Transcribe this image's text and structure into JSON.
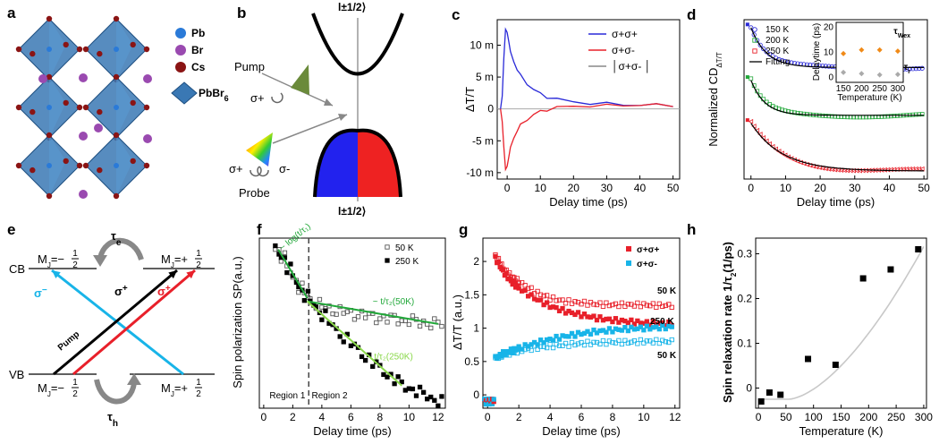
{
  "panel_labels": [
    "a",
    "b",
    "c",
    "d",
    "e",
    "f",
    "g",
    "h"
  ],
  "colors": {
    "red": "#e8202a",
    "blue": "#2a2ad8",
    "green": "#22a83a",
    "cyan": "#18b4e8",
    "orange": "#f08a18",
    "gray": "#9a9a9a",
    "crystal": "#3a78b4"
  },
  "panel_a": {
    "legend": [
      {
        "label": "Pb",
        "color": "#2a7ad8"
      },
      {
        "label": "Br",
        "color": "#9a4ab0"
      },
      {
        "label": "Cs",
        "color": "#8a1414"
      },
      {
        "label": "PbBr",
        "sub": "6",
        "color": "#3a78b4"
      }
    ]
  },
  "panel_b": {
    "top_state": "l±1/2⟩",
    "bottom_state": "l±1/2⟩",
    "pump": "Pump",
    "probe": "Probe",
    "sigma_plus_pump": "σ+",
    "sigma_plus_probe": "σ+",
    "sigma_minus_probe": "σ-"
  },
  "panel_e": {
    "cb": "CB",
    "vb": "VB",
    "mj_cb_left": "M",
    "mj_cb_left_val": "=−",
    "mj_cb_right": "M",
    "mj_cb_right_val": "=+",
    "mj_vb_left": "M",
    "mj_vb_left_val": "=−",
    "mj_vb_right": "M",
    "mj_vb_right_val": "=+",
    "frac_num": "1",
    "frac_den": "2",
    "tau_e": "τ",
    "tau_e_sub": "e",
    "tau_h": "τ",
    "tau_h_sub": "h",
    "pump": "Pump",
    "sigma_minus": "σ",
    "sigma_plus_black": "σ",
    "sigma_plus_red": "σ"
  },
  "chart_data": [
    {
      "panel": "c",
      "type": "line",
      "xlabel": "Delay time (ps)",
      "ylabel": "ΔT/T",
      "xlim": [
        -3,
        52
      ],
      "ylim": [
        -11,
        14
      ],
      "xticks": [
        0,
        10,
        20,
        30,
        40,
        50
      ],
      "yticks": [
        {
          "v": 10,
          "label": "10 m"
        },
        {
          "v": 5,
          "label": "5 m"
        },
        {
          "v": 0,
          "label": "0"
        },
        {
          "v": -5,
          "label": "-5 m"
        },
        {
          "v": -10,
          "label": "-10 m"
        }
      ],
      "legend": [
        "σ+σ+",
        "σ+σ-",
        "│σ+σ- │"
      ],
      "series": [
        {
          "name": "σ+σ+",
          "color": "#2a2ad8",
          "x": [
            -2,
            -1.5,
            -1,
            -0.5,
            0,
            0.5,
            1,
            2,
            3,
            4,
            6,
            8,
            10,
            12,
            15,
            20,
            25,
            30,
            35,
            40,
            45,
            50
          ],
          "y": [
            0,
            2,
            8,
            12.5,
            12,
            10.5,
            9,
            7.5,
            6.2,
            5.2,
            4,
            3,
            2.4,
            1.9,
            1.5,
            1.1,
            0.9,
            0.8,
            0.7,
            0.6,
            0.6,
            0.6
          ]
        },
        {
          "name": "σ+σ-",
          "color": "#e8202a",
          "x": [
            -2,
            -1.5,
            -1,
            -0.5,
            0,
            0.5,
            1,
            2,
            3,
            4,
            6,
            8,
            10,
            12,
            15,
            20,
            25,
            30,
            35,
            40,
            45,
            50
          ],
          "y": [
            0,
            -2,
            -6,
            -9.5,
            -9,
            -7.5,
            -6,
            -4.5,
            -3.4,
            -2.6,
            -1.6,
            -0.9,
            -0.4,
            -0.1,
            0.2,
            0.4,
            0.5,
            0.5,
            0.6,
            0.6,
            0.6,
            0.6
          ]
        }
      ]
    },
    {
      "panel": "d",
      "type": "scatter",
      "xlabel": "Delay time (ps)",
      "ylabel": "Normalized CD",
      "ylabel_sub": "ΔT/T",
      "xlim": [
        -2,
        51
      ],
      "xticks": [
        0,
        10,
        20,
        30,
        40,
        50
      ],
      "legend": [
        "150 K",
        "200 K",
        "250 K",
        "Fitting"
      ],
      "series": [
        {
          "name": "150 K",
          "color": "#2a2ad8",
          "offset": 0.7,
          "tau": 4.5,
          "amp": 0.25
        },
        {
          "name": "200 K",
          "color": "#22a83a",
          "offset": 0.4,
          "tau": 4.0,
          "amp": 0.22
        },
        {
          "name": "250 K",
          "color": "#e8202a",
          "offset": 0.05,
          "tau": 9.0,
          "amp": 0.3
        }
      ],
      "inset": {
        "xlabel": "Temperature (K)",
        "ylabel": "Delaytime (ps)",
        "xticks": [
          150,
          200,
          250,
          300
        ],
        "yticks": [
          0,
          10,
          20
        ],
        "ylim": [
          -2,
          22
        ],
        "xlim": [
          130,
          315
        ],
        "series": [
          {
            "name": "τ",
            "sub": "Wex",
            "color": "#f08a18",
            "x": [
              150,
              200,
              250,
              300
            ],
            "y": [
              9.5,
              11,
              11,
              10.5
            ]
          },
          {
            "name": "τ",
            "sub": "r",
            "color": "#aaaaaa",
            "x": [
              150,
              200,
              250,
              300
            ],
            "y": [
              2,
              1.5,
              1,
              1.2
            ]
          }
        ]
      }
    },
    {
      "panel": "f",
      "type": "scatter",
      "xlabel": "Delay time (ps)",
      "ylabel": "Spin polarization SP(a.u.)",
      "xlim": [
        -0.3,
        12.5
      ],
      "xticks": [
        0,
        2,
        4,
        6,
        8,
        10,
        12
      ],
      "legend": [
        "50 K",
        "250 K"
      ],
      "annotations": [
        "~ log(t/τ₁)",
        "~ t/τ₂(50K)",
        "t/τ₂(250K)",
        "Region 1",
        "Region 2"
      ],
      "divider_x": 3.1,
      "series": [
        {
          "name": "50 K",
          "color": "#555555",
          "filled": false,
          "x": [
            0.8,
            1.2,
            1.6,
            2,
            2.4,
            2.8,
            3.2,
            3.6,
            4,
            4.5,
            5,
            5.5,
            6,
            6.5,
            7,
            7.5,
            8,
            8.5,
            9,
            9.5,
            10,
            10.5,
            11,
            11.5,
            12
          ],
          "y": [
            0.98,
            0.93,
            0.86,
            0.8,
            0.74,
            0.7,
            0.66,
            0.64,
            0.62,
            0.61,
            0.6,
            0.59,
            0.58,
            0.58,
            0.57,
            0.56,
            0.56,
            0.55,
            0.55,
            0.54,
            0.54,
            0.53,
            0.53,
            0.52,
            0.52
          ]
        },
        {
          "name": "250 K",
          "color": "#000000",
          "filled": true,
          "x": [
            0.8,
            1.2,
            1.6,
            2,
            2.4,
            2.8,
            3.2,
            3.6,
            4,
            4.5,
            5,
            5.5,
            6,
            6.5,
            7,
            7.5,
            8,
            8.5,
            9,
            9.5,
            10,
            10.5,
            11,
            11.5,
            12
          ],
          "y": [
            0.98,
            0.93,
            0.86,
            0.8,
            0.74,
            0.69,
            0.65,
            0.61,
            0.57,
            0.52,
            0.47,
            0.43,
            0.39,
            0.35,
            0.31,
            0.27,
            0.24,
            0.2,
            0.17,
            0.14,
            0.12,
            0.1,
            0.08,
            0.06,
            0.04
          ]
        }
      ]
    },
    {
      "panel": "g",
      "type": "scatter",
      "xlabel": "Delay time (ps)",
      "ylabel": "ΔT/T (a.u.)",
      "xlim": [
        -0.3,
        12.3
      ],
      "ylim": [
        -0.2,
        2.35
      ],
      "xticks": [
        0,
        2,
        4,
        6,
        8,
        10,
        12
      ],
      "yticks": [
        {
          "v": 0,
          "label": "0"
        },
        {
          "v": 0.5,
          "label": "0.5"
        },
        {
          "v": 1,
          "label": "1"
        },
        {
          "v": 1.5,
          "label": "1.5"
        },
        {
          "v": 2,
          "label": "2"
        }
      ],
      "legend": [
        "σ+σ+",
        "σ+σ-"
      ],
      "labels": [
        "50 K",
        "250 K",
        "50 K"
      ],
      "series": [
        {
          "name": "σ+σ+ 50 K",
          "color": "#e8202a",
          "filled": false,
          "x": [
            0.5,
            1,
            1.5,
            2,
            3,
            4,
            5,
            6,
            7,
            8,
            9,
            10,
            11,
            12
          ],
          "y": [
            2.1,
            1.9,
            1.78,
            1.7,
            1.55,
            1.45,
            1.4,
            1.38,
            1.36,
            1.35,
            1.35,
            1.35,
            1.34,
            1.34
          ]
        },
        {
          "name": "σ+σ+ 250 K",
          "color": "#e8202a",
          "filled": true,
          "x": [
            0.5,
            1,
            1.5,
            2,
            3,
            4,
            5,
            6,
            7,
            8,
            9,
            10,
            11,
            12
          ],
          "y": [
            2.05,
            1.85,
            1.7,
            1.6,
            1.45,
            1.33,
            1.25,
            1.2,
            1.15,
            1.12,
            1.1,
            1.08,
            1.07,
            1.06
          ]
        },
        {
          "name": "σ+σ- 250 K",
          "color": "#18b4e8",
          "filled": true,
          "x": [
            0.5,
            1,
            1.5,
            2,
            3,
            4,
            5,
            6,
            7,
            8,
            9,
            10,
            11,
            12
          ],
          "y": [
            0.55,
            0.62,
            0.66,
            0.7,
            0.77,
            0.83,
            0.88,
            0.92,
            0.95,
            0.97,
            0.99,
            1.0,
            1.01,
            1.02
          ]
        },
        {
          "name": "σ+σ- 50 K",
          "color": "#18b4e8",
          "filled": false,
          "x": [
            0.5,
            1,
            1.5,
            2,
            3,
            4,
            5,
            6,
            7,
            8,
            9,
            10,
            11,
            12
          ],
          "y": [
            0.55,
            0.6,
            0.63,
            0.66,
            0.7,
            0.73,
            0.75,
            0.77,
            0.78,
            0.79,
            0.79,
            0.8,
            0.8,
            0.8
          ]
        }
      ]
    },
    {
      "panel": "h",
      "type": "scatter",
      "xlabel": "Temperature (K)",
      "ylabel": "Spin relaxation rate 1/τ",
      "ylabel_sub": "2",
      "ylabel_tail": "(1/ps)",
      "xlim": [
        -5,
        305
      ],
      "ylim": [
        -0.045,
        0.335
      ],
      "xticks": [
        0,
        50,
        100,
        150,
        200,
        250,
        300
      ],
      "yticks": [
        {
          "v": 0,
          "label": "0"
        },
        {
          "v": 0.1,
          "label": "0.1"
        },
        {
          "v": 0.2,
          "label": "0.2"
        },
        {
          "v": 0.3,
          "label": "0.3"
        }
      ],
      "series": [
        {
          "name": "data",
          "color": "#000000",
          "x": [
            5,
            20,
            40,
            90,
            140,
            190,
            240,
            290
          ],
          "y": [
            -0.03,
            -0.01,
            -0.015,
            0.065,
            0.052,
            0.245,
            0.265,
            0.31
          ]
        }
      ]
    }
  ]
}
